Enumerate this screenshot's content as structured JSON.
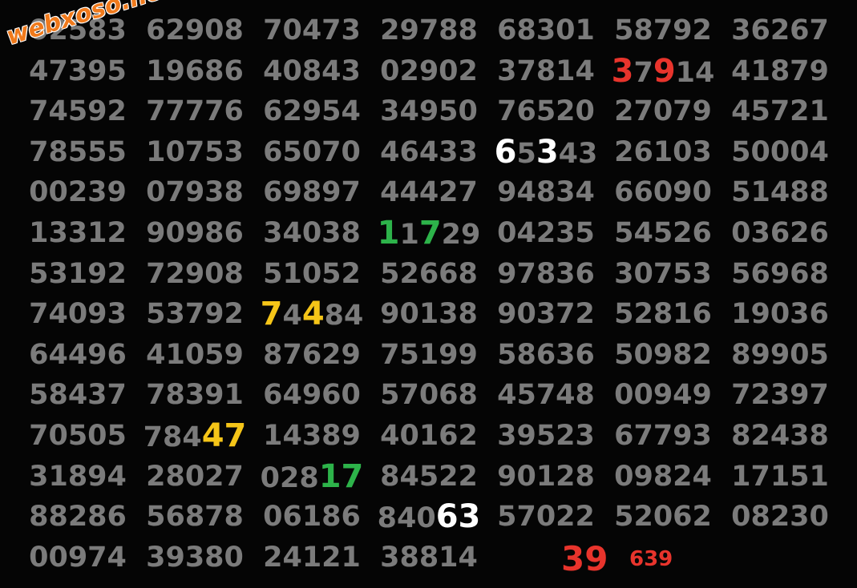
{
  "watermark": "webxoso.net",
  "colors": {
    "base": "#7b7b7b",
    "red": "#e8342c",
    "white": "#ffffff",
    "green": "#2db34a",
    "yellow": "#f5c518",
    "watermark": "#f07a1c"
  },
  "rows": [
    [
      "02583",
      "62908",
      "70473",
      "29788",
      "68301",
      "58792",
      "36267"
    ],
    [
      "47395",
      "19686",
      "40843",
      "02902",
      "37814",
      [
        {
          "text": "3",
          "color": "red"
        },
        {
          "text": "7"
        },
        {
          "text": "9",
          "color": "red"
        },
        {
          "text": "14"
        }
      ],
      "41879"
    ],
    [
      "74592",
      "77776",
      "62954",
      "34950",
      "76520",
      "27079",
      "45721"
    ],
    [
      "78555",
      "10753",
      "65070",
      "46433",
      [
        {
          "text": "6",
          "color": "white"
        },
        {
          "text": "5"
        },
        {
          "text": "3",
          "color": "white"
        },
        {
          "text": "43"
        }
      ],
      "26103",
      "50004"
    ],
    [
      "00239",
      "07938",
      "69897",
      "44427",
      "94834",
      "66090",
      "51488"
    ],
    [
      "13312",
      "90986",
      "34038",
      [
        {
          "text": "1",
          "color": "green"
        },
        {
          "text": "1"
        },
        {
          "text": "7",
          "color": "green"
        },
        {
          "text": "29"
        }
      ],
      "04235",
      "54526",
      "03626"
    ],
    [
      "53192",
      "72908",
      "51052",
      "52668",
      "97836",
      "30753",
      "56968"
    ],
    [
      "74093",
      "53792",
      [
        {
          "text": "7",
          "color": "yellow"
        },
        {
          "text": "4"
        },
        {
          "text": "4",
          "color": "yellow"
        },
        {
          "text": "84"
        }
      ],
      "90138",
      "90372",
      "52816",
      "19036"
    ],
    [
      "64496",
      "41059",
      "87629",
      "75199",
      "58636",
      "50982",
      "89905"
    ],
    [
      "58437",
      "78391",
      "64960",
      "57068",
      "45748",
      "00949",
      "72397"
    ],
    [
      "70505",
      [
        {
          "text": "784"
        },
        {
          "text": "47",
          "color": "yellow"
        }
      ],
      "14389",
      "40162",
      "39523",
      "67793",
      "82438"
    ],
    [
      "31894",
      "28027",
      [
        {
          "text": "028"
        },
        {
          "text": "17",
          "color": "green"
        }
      ],
      "84522",
      "90128",
      "09824",
      "17151"
    ],
    [
      "88286",
      "56878",
      "06186",
      [
        {
          "text": "840"
        },
        {
          "text": "63",
          "color": "white"
        }
      ],
      "57022",
      "52062",
      "08230"
    ],
    [
      "00974",
      "39380",
      "24121",
      "38814"
    ]
  ],
  "results": [
    {
      "text": "39",
      "color": "red"
    },
    {
      "text": "639",
      "color": "red"
    }
  ]
}
